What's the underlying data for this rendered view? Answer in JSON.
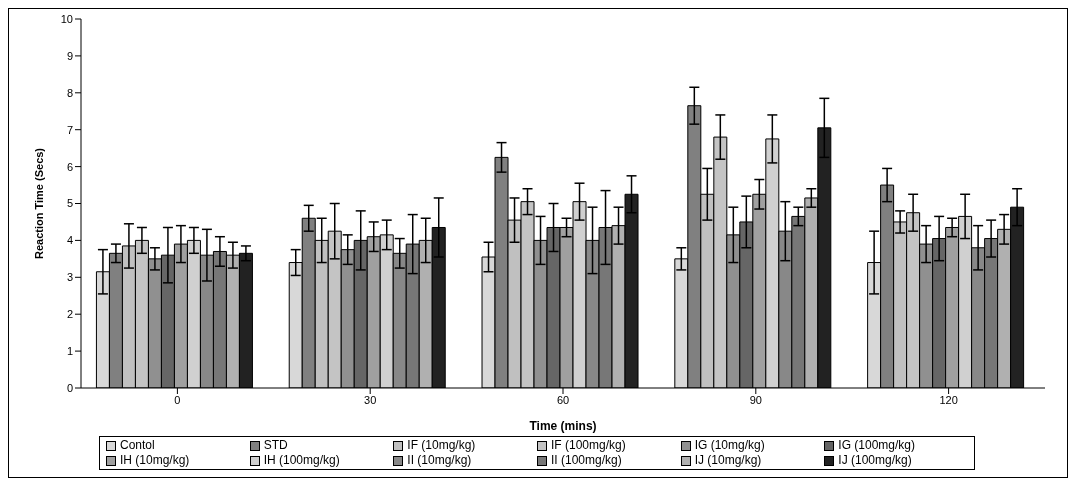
{
  "chart_data": {
    "type": "bar",
    "xlabel": "Time (mins)",
    "ylabel": "Reaction Time (Secs)",
    "categories": [
      "0",
      "30",
      "60",
      "90",
      "120"
    ],
    "ylim": [
      0,
      10
    ],
    "yticks": [
      0,
      1,
      2,
      3,
      4,
      5,
      6,
      7,
      8,
      9,
      10
    ],
    "legend": "bottom",
    "series": [
      {
        "name": "Contol",
        "color": "#d8d8d8",
        "values": [
          3.15,
          3.4,
          3.55,
          3.5,
          3.4
        ],
        "errors": [
          0.6,
          0.35,
          0.4,
          0.3,
          0.85
        ]
      },
      {
        "name": "STD",
        "color": "#808080",
        "values": [
          3.65,
          4.6,
          6.25,
          7.65,
          5.5
        ],
        "errors": [
          0.25,
          0.35,
          0.4,
          0.5,
          0.45
        ]
      },
      {
        "name": "IF (10mg/kg)",
        "color": "#c0c0c0",
        "values": [
          3.85,
          4.0,
          4.55,
          5.25,
          4.5
        ],
        "errors": [
          0.6,
          0.6,
          0.6,
          0.7,
          0.3
        ]
      },
      {
        "name": "IF (100mg/kg)",
        "color": "#c4c4c4",
        "values": [
          4.0,
          4.25,
          5.05,
          6.8,
          4.75
        ],
        "errors": [
          0.35,
          0.75,
          0.35,
          0.6,
          0.5
        ]
      },
      {
        "name": "IG (10mg/kg)",
        "color": "#909090",
        "values": [
          3.5,
          3.75,
          4.0,
          4.15,
          3.9
        ],
        "errors": [
          0.3,
          0.4,
          0.65,
          0.75,
          0.5
        ]
      },
      {
        "name": "IG (100mg/kg)",
        "color": "#666666",
        "values": [
          3.6,
          4.0,
          4.35,
          4.5,
          4.05
        ],
        "errors": [
          0.75,
          0.8,
          0.65,
          0.7,
          0.6
        ]
      },
      {
        "name": "IH (10mg/kg)",
        "color": "#a0a0a0",
        "values": [
          3.9,
          4.1,
          4.35,
          5.25,
          4.35
        ],
        "errors": [
          0.5,
          0.4,
          0.25,
          0.4,
          0.25
        ]
      },
      {
        "name": "IH (100mg/kg)",
        "color": "#d0d0d0",
        "values": [
          4.0,
          4.15,
          5.05,
          6.75,
          4.65
        ],
        "errors": [
          0.35,
          0.4,
          0.5,
          0.65,
          0.6
        ]
      },
      {
        "name": "II (10mg/kg)",
        "color": "#888888",
        "values": [
          3.6,
          3.65,
          4.0,
          4.25,
          3.8
        ],
        "errors": [
          0.7,
          0.4,
          0.9,
          0.8,
          0.6
        ]
      },
      {
        "name": "II (100mg/kg)",
        "color": "#777777",
        "values": [
          3.7,
          3.9,
          4.35,
          4.65,
          4.05
        ],
        "errors": [
          0.4,
          0.8,
          1.0,
          0.25,
          0.5
        ]
      },
      {
        "name": "IJ (10mg/kg)",
        "color": "#b0b0b0",
        "values": [
          3.6,
          4.0,
          4.4,
          5.15,
          4.3
        ],
        "errors": [
          0.35,
          0.6,
          0.5,
          0.25,
          0.4
        ]
      },
      {
        "name": "IJ (100mg/kg)",
        "color": "#222222",
        "values": [
          3.65,
          4.35,
          5.25,
          7.05,
          4.9
        ],
        "errors": [
          0.2,
          0.8,
          0.5,
          0.8,
          0.5
        ]
      }
    ]
  }
}
